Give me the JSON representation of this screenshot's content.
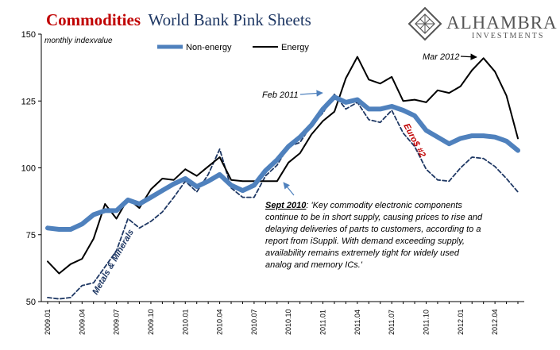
{
  "title": {
    "part1": "Commodities",
    "part2": "World Bank Pink Sheets"
  },
  "logo": {
    "name": "ALHAMBRA",
    "sub": "INVESTMENTS",
    "icon": "diamond-lattice-icon"
  },
  "colors": {
    "non_energy": "#4f81bd",
    "energy": "#000000",
    "metals": "#1f3864",
    "title_red": "#c00000"
  },
  "annotations": {
    "feb2011": "Feb 2011",
    "mar2012": "Mar 2012",
    "metals": "Metals & Minerals",
    "euro": "Euro$ #2",
    "sept_head": "Sept 2010",
    "sept_lines": [
      ": 'Key commodity electronic components",
      "continue to be in short supply, causing prices to rise and",
      "delaying deliveries of parts to customers, according to a",
      "report from iSuppli. With demand exceeding supply,",
      "availability remains extremely tight for widely used",
      "analog and memory ICs.'"
    ]
  },
  "chart_data": {
    "type": "line",
    "ylabel": "monthly indexvalue",
    "ylim": [
      50,
      150
    ],
    "y_ticks": [
      50,
      75,
      100,
      125,
      150
    ],
    "grid": false,
    "legend_placement": "top",
    "x_tick_labels": [
      "2009.01",
      "2009.04",
      "2009.07",
      "2009.10",
      "2010.01",
      "2010.04",
      "2010.07",
      "2010.10",
      "2011.01",
      "2011.04",
      "2011.07",
      "2011.10",
      "2012.01",
      "2012.04"
    ],
    "x": [
      "2009.01",
      "2009.02",
      "2009.03",
      "2009.04",
      "2009.05",
      "2009.06",
      "2009.07",
      "2009.08",
      "2009.09",
      "2009.10",
      "2009.11",
      "2009.12",
      "2010.01",
      "2010.02",
      "2010.03",
      "2010.04",
      "2010.05",
      "2010.06",
      "2010.07",
      "2010.08",
      "2010.09",
      "2010.10",
      "2010.11",
      "2010.12",
      "2011.01",
      "2011.02",
      "2011.03",
      "2011.04",
      "2011.05",
      "2011.06",
      "2011.07",
      "2011.08",
      "2011.09",
      "2011.10",
      "2011.11",
      "2011.12",
      "2012.01",
      "2012.02",
      "2012.03",
      "2012.04",
      "2012.05",
      "2012.06"
    ],
    "series": [
      {
        "name": "Non-energy",
        "style": "thick-blue",
        "values": [
          77.5,
          77,
          77,
          79,
          82.5,
          84,
          84,
          88,
          86.5,
          89,
          91.5,
          94,
          96,
          93,
          95,
          97.5,
          93.5,
          91.5,
          93.5,
          99,
          103,
          108,
          111.5,
          116,
          122,
          126.5,
          124.5,
          125.5,
          122,
          122,
          123,
          121.5,
          119.5,
          114,
          111.5,
          109,
          111,
          112,
          112,
          111.5,
          110,
          106.5
        ]
      },
      {
        "name": "Energy",
        "style": "solid-black",
        "values": [
          65,
          60.5,
          64,
          66,
          73.5,
          86.5,
          81,
          88.5,
          85,
          92,
          96,
          95.5,
          99.5,
          97,
          100.5,
          104,
          95.5,
          95,
          95,
          95,
          95,
          102,
          105.5,
          112.5,
          117.5,
          121,
          133.5,
          141.5,
          133,
          131.5,
          134,
          125,
          125.5,
          124.5,
          129,
          128,
          130.5,
          136.5,
          141,
          136,
          127,
          111
        ]
      },
      {
        "name": "Metals & Minerals",
        "style": "dashed-navy",
        "values": [
          51.5,
          51,
          51.5,
          56,
          57,
          63,
          69,
          81,
          77.5,
          80,
          83.5,
          89,
          95,
          91,
          97.5,
          107,
          92.5,
          89,
          89,
          97,
          101,
          108,
          109.5,
          116,
          120.5,
          127.5,
          122,
          124.5,
          118,
          117,
          121.5,
          113,
          108,
          99.5,
          95.5,
          95,
          100,
          104,
          103.5,
          100.5,
          96,
          91
        ]
      }
    ]
  }
}
